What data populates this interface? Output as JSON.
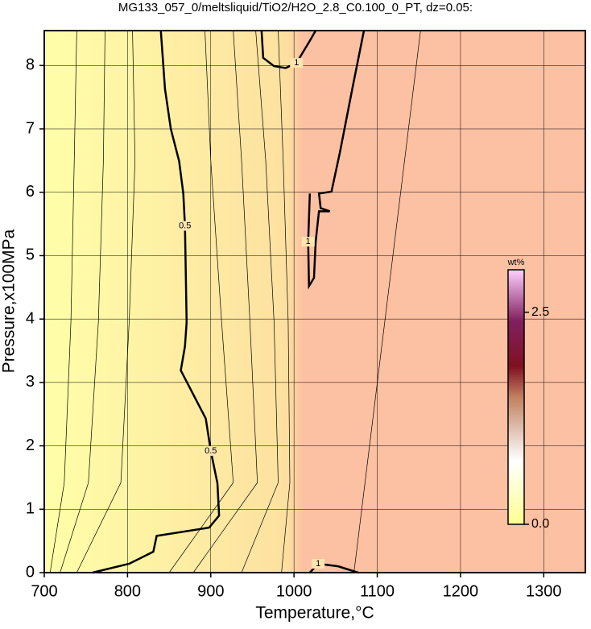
{
  "chart_data": {
    "type": "contour",
    "title": "MG133_057_0/meltsliquid/TiO2/H2O_2.8_C0.100_0_PT, dz=0.05:",
    "x_label": "Temperature,°C",
    "y_label": "Pressure,x100MPa",
    "xlim": [
      700,
      1350
    ],
    "ylim": [
      0,
      8.55
    ],
    "xticks": [
      700,
      800,
      900,
      1000,
      1100,
      1200,
      1300
    ],
    "yticks": [
      0,
      1,
      2,
      3,
      4,
      5,
      6,
      7,
      8
    ],
    "grid": true,
    "contours": [
      {
        "level": 0.5,
        "label": "0.5",
        "x": [
          840,
          845,
          852,
          862,
          867,
          869,
          871,
          869,
          864,
          879,
          894,
          900,
          908,
          910,
          898,
          835,
          831,
          802,
          758
        ],
        "y": [
          8.55,
          7.63,
          7.0,
          6.49,
          5.98,
          5.47,
          3.95,
          3.57,
          3.19,
          2.81,
          2.43,
          1.92,
          1.41,
          0.9,
          0.71,
          0.58,
          0.33,
          0.14,
          0
        ]
      },
      {
        "level": 1,
        "label": "1",
        "x": [
          961,
          963,
          976,
          990,
          1003,
          1019,
          1026
        ],
        "y": [
          8.55,
          8.12,
          7.99,
          7.96,
          8.04,
          8.39,
          8.55
        ]
      },
      {
        "level": 1,
        "label": "1",
        "x": [
          1084,
          1070,
          1055,
          1045,
          1030,
          1032,
          1043,
          1030,
          1026,
          1024,
          1018,
          1017,
          1019
        ],
        "y": [
          8.55,
          7.63,
          6.62,
          6.01,
          5.98,
          5.75,
          5.7,
          5.7,
          5.22,
          4.65,
          4.52,
          5.22,
          5.98
        ]
      },
      {
        "level": 1,
        "label": "1",
        "x": [
          1019,
          1029,
          1053,
          1077
        ],
        "y": [
          0,
          0.14,
          0.1,
          0
        ]
      },
      {
        "level": 0.2,
        "x": [
          739,
          736,
          732,
          724,
          707
        ],
        "y": [
          8.55,
          6.5,
          3.96,
          1.42,
          0
        ]
      },
      {
        "level": 0.3,
        "x": [
          773,
          771,
          765,
          753,
          719
        ],
        "y": [
          8.55,
          6.5,
          3.96,
          1.42,
          0
        ]
      },
      {
        "level": 0.4,
        "x": [
          806,
          809,
          802,
          792,
          739
        ],
        "y": [
          8.55,
          6.5,
          3.96,
          1.42,
          0
        ]
      },
      {
        "level": 0.6,
        "x": [
          893,
          900,
          913,
          927,
          850
        ],
        "y": [
          8.55,
          6.5,
          3.96,
          1.42,
          0
        ]
      },
      {
        "level": 0.7,
        "x": [
          927,
          937,
          947,
          956,
          879
        ],
        "y": [
          8.55,
          6.5,
          3.96,
          1.42,
          0
        ]
      },
      {
        "level": 0.8,
        "x": [
          954,
          966,
          976,
          981,
          937
        ],
        "y": [
          8.55,
          6.5,
          3.96,
          1.42,
          0
        ]
      },
      {
        "level": 0.9,
        "x": [
          981,
          987,
          993,
          995,
          985
        ],
        "y": [
          8.55,
          6.5,
          3.96,
          1.42,
          0
        ]
      },
      {
        "level": 1.05,
        "x": [
          1072,
          1152
        ],
        "y": [
          0,
          8.55
        ]
      }
    ],
    "colorbar": {
      "label": "wt%",
      "lim": [
        0,
        3.0
      ],
      "ticks": [
        {
          "value": 0,
          "label": "0.0"
        },
        2.5
      ]
    }
  }
}
